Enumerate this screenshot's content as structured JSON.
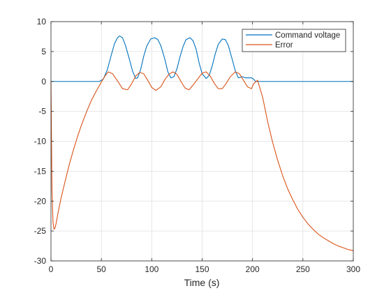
{
  "chart_data": {
    "type": "line",
    "title": "",
    "xlabel": "Time (s)",
    "ylabel": "",
    "xlim": [
      0,
      300
    ],
    "ylim": [
      -30,
      10
    ],
    "xticks": [
      0,
      50,
      100,
      150,
      200,
      250,
      300
    ],
    "yticks": [
      -30,
      -25,
      -20,
      -15,
      -10,
      -5,
      0,
      5,
      10
    ],
    "grid": true,
    "legend_location": "top-right",
    "series": [
      {
        "name": "Command voltage",
        "color": "#0072BD",
        "x": [
          0,
          48,
          52,
          56,
          60,
          63,
          66,
          68,
          71,
          74,
          78,
          81,
          84,
          86,
          89,
          92,
          95,
          99,
          103,
          106,
          109,
          113,
          116,
          119,
          122,
          125,
          128,
          131,
          134,
          138,
          141,
          144,
          147,
          150,
          154,
          157,
          160,
          163,
          166,
          170,
          173,
          176,
          180,
          183,
          186,
          190,
          193,
          196,
          199,
          201,
          203,
          300
        ],
        "y": [
          0,
          0,
          0.4,
          2.0,
          4.5,
          6.3,
          7.3,
          7.6,
          7.3,
          6.0,
          3.6,
          1.7,
          0.5,
          0.6,
          2.0,
          4.2,
          5.9,
          7.1,
          7.3,
          7.0,
          6.0,
          3.7,
          1.6,
          0.6,
          0.8,
          2.1,
          4.1,
          5.8,
          7.0,
          7.3,
          6.8,
          5.4,
          3.1,
          1.3,
          0.5,
          1.0,
          2.6,
          4.6,
          6.2,
          7.1,
          7.0,
          6.0,
          3.6,
          1.7,
          0.6,
          0.8,
          0.6,
          0.6,
          0.6,
          0.4,
          0,
          0
        ]
      },
      {
        "name": "Error",
        "color": "#D95319",
        "x": [
          0,
          1,
          2,
          3,
          4,
          5,
          7,
          10,
          14,
          18,
          22,
          26,
          30,
          35,
          40,
          45,
          50,
          54,
          57,
          61,
          66,
          71,
          76,
          80,
          84,
          88,
          92,
          96,
          100,
          104,
          109,
          113,
          117,
          121,
          125,
          129,
          133,
          137,
          141,
          146,
          150,
          154,
          158,
          162,
          166,
          170,
          174,
          178,
          183,
          187,
          191,
          195,
          199,
          201,
          205,
          210,
          215,
          220,
          225,
          230,
          235,
          240,
          245,
          250,
          255,
          260,
          265,
          270,
          275,
          280,
          285,
          290,
          295,
          300
        ],
        "y": [
          0,
          -18,
          -23.5,
          -24.7,
          -24.5,
          -23.8,
          -22.0,
          -19.5,
          -16.7,
          -14.0,
          -11.6,
          -9.4,
          -7.4,
          -5.2,
          -3.2,
          -1.6,
          -0.1,
          1.0,
          1.6,
          1.3,
          0.1,
          -1.2,
          -1.4,
          -0.4,
          0.9,
          1.5,
          1.3,
          0.2,
          -1.0,
          -1.5,
          -0.9,
          0.3,
          1.2,
          1.6,
          1.2,
          0.0,
          -1.1,
          -1.4,
          -0.6,
          0.5,
          1.4,
          1.6,
          0.9,
          -0.3,
          -1.2,
          -1.2,
          -0.3,
          0.8,
          1.6,
          1.3,
          0.2,
          -0.9,
          -1.2,
          -0.4,
          0.2,
          -2.6,
          -6.7,
          -10.2,
          -13.2,
          -15.8,
          -18.0,
          -19.8,
          -21.4,
          -22.7,
          -23.8,
          -24.7,
          -25.5,
          -26.1,
          -26.6,
          -27.1,
          -27.5,
          -27.8,
          -28.1,
          -28.3
        ]
      }
    ]
  }
}
